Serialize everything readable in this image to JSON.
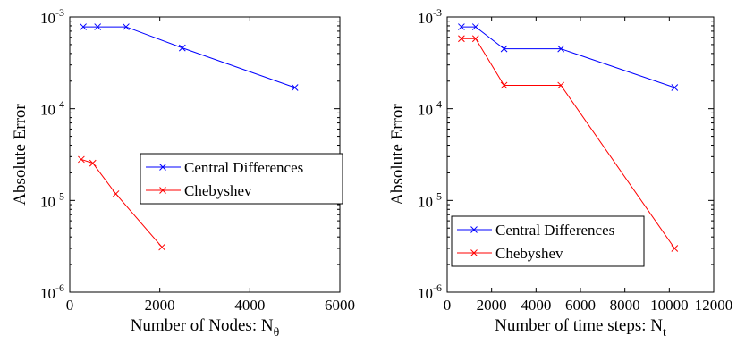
{
  "chart_data": [
    {
      "type": "line",
      "yscale": "log",
      "xlabel": "Number of Nodes: N",
      "xlabel_subscript": "θ",
      "ylabel": "Absolute Error",
      "xlim": [
        0,
        6000
      ],
      "ylim": [
        1e-06,
        0.001
      ],
      "xticks": [
        0,
        2000,
        4000,
        6000
      ],
      "xtick_labels": [
        "0",
        "2000",
        "4000",
        "6000"
      ],
      "yticks": [
        1e-06,
        1e-05,
        0.0001,
        0.001
      ],
      "ytick_labels": [
        {
          "base": "10",
          "exp": "-6"
        },
        {
          "base": "10",
          "exp": "-5"
        },
        {
          "base": "10",
          "exp": "-4"
        },
        {
          "base": "10",
          "exp": "-3"
        }
      ],
      "grid": false,
      "legend_position": "center-right",
      "series": [
        {
          "name": "Central Differences",
          "color": "#0000ff",
          "marker": "x",
          "x": [
            300,
            620,
            1250,
            2500,
            5000
          ],
          "y": [
            0.00078,
            0.00078,
            0.00078,
            0.00046,
            0.00017
          ]
        },
        {
          "name": "Chebyshev",
          "color": "#ff0000",
          "marker": "x",
          "x": [
            256,
            512,
            1024,
            2048
          ],
          "y": [
            2.8e-05,
            2.55e-05,
            1.18e-05,
            3.1e-06
          ]
        }
      ]
    },
    {
      "type": "line",
      "yscale": "log",
      "xlabel": "Number of time steps: N",
      "xlabel_subscript": "t",
      "ylabel": "Absolute Error",
      "xlim": [
        0,
        12000
      ],
      "ylim": [
        1e-06,
        0.001
      ],
      "xticks": [
        0,
        2000,
        4000,
        6000,
        8000,
        10000,
        12000
      ],
      "xtick_labels": [
        "0",
        "2000",
        "4000",
        "6000",
        "8000",
        "10000",
        "12000"
      ],
      "yticks": [
        1e-06,
        1e-05,
        0.0001,
        0.001
      ],
      "ytick_labels": [
        {
          "base": "10",
          "exp": "-6"
        },
        {
          "base": "10",
          "exp": "-5"
        },
        {
          "base": "10",
          "exp": "-4"
        },
        {
          "base": "10",
          "exp": "-3"
        }
      ],
      "grid": false,
      "legend_position": "bottom-right",
      "series": [
        {
          "name": "Central Differences",
          "color": "#0000ff",
          "marker": "x",
          "x": [
            640,
            1280,
            2560,
            5120,
            10240
          ],
          "y": [
            0.00078,
            0.00078,
            0.00045,
            0.00045,
            0.00017
          ]
        },
        {
          "name": "Chebyshev",
          "color": "#ff0000",
          "marker": "x",
          "x": [
            640,
            1280,
            2560,
            5120,
            10240
          ],
          "y": [
            0.00058,
            0.00058,
            0.00018,
            0.00018,
            3e-06
          ]
        }
      ]
    }
  ]
}
